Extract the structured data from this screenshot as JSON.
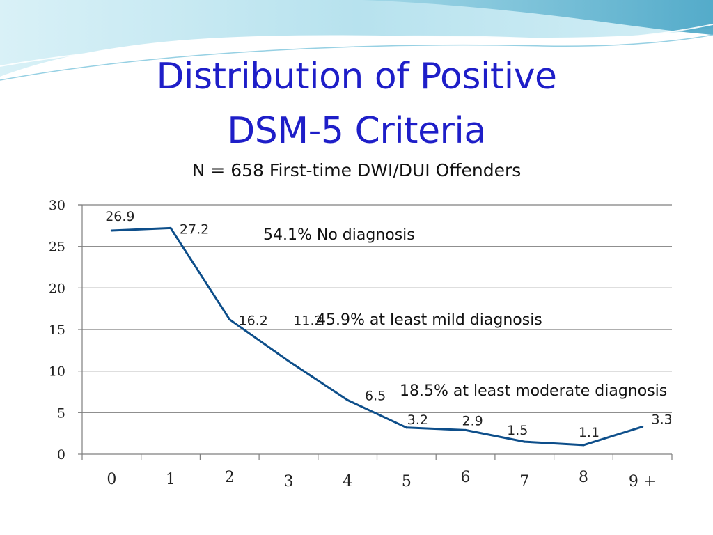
{
  "slide": {
    "title_line1": "Distribution of Positive",
    "title_line2": "DSM-5 Criteria",
    "subtitle": "N = 658 First-time DWI/DUI Offenders",
    "colors": {
      "title": "#1e1ec8",
      "line": "#0d4e8a",
      "gridline": "#7f7f7f",
      "header_wave_light": "#b9e4ef",
      "header_wave_dark": "#5ab3cf"
    }
  },
  "chart_data": {
    "type": "line",
    "title": "",
    "xlabel": "",
    "ylabel": "",
    "categories": [
      "0",
      "1",
      "2",
      "3",
      "4",
      "5",
      "6",
      "7",
      "8",
      "9 +"
    ],
    "series": [
      {
        "values": [
          26.9,
          27.2,
          16.2,
          11.2,
          6.5,
          3.2,
          2.9,
          1.5,
          1.1,
          3.3
        ]
      }
    ],
    "data_labels": [
      "26.9",
      "27.2",
      "16.2",
      "11.2",
      "6.5",
      "3.2",
      "2.9",
      "1.5",
      "1.1",
      "3.3"
    ],
    "ylim": [
      0,
      30
    ],
    "yticks": [
      0,
      5,
      10,
      15,
      20,
      25,
      30
    ],
    "ytick_labels": [
      "0",
      "5",
      "10",
      "15",
      "20",
      "25",
      "30"
    ],
    "grid": true,
    "legend": "none",
    "annotations": [
      {
        "id": "no-diagnosis",
        "text": "54.1% No diagnosis"
      },
      {
        "id": "mild",
        "text": "45.9% at least mild diagnosis"
      },
      {
        "id": "moderate",
        "text": "18.5% at least moderate diagnosis"
      }
    ]
  }
}
